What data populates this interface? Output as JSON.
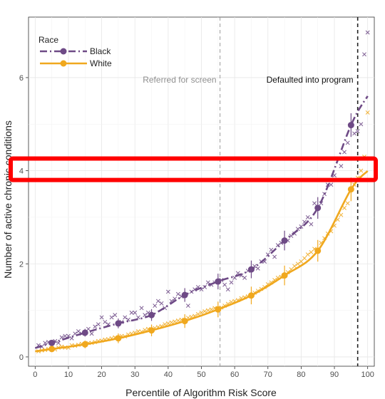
{
  "chart_data": {
    "type": "scatter",
    "xlabel": "Percentile of Algorithm Risk Score",
    "ylabel": "Number of active chronic conditions",
    "xlim": [
      -2,
      102
    ],
    "ylim": [
      -0.2,
      7.3
    ],
    "x_ticks": [
      0,
      10,
      20,
      30,
      40,
      50,
      60,
      70,
      80,
      90,
      100
    ],
    "x_tick_labels": [
      "0",
      "10",
      "20",
      "30",
      "40",
      "50",
      "60",
      "70",
      "80",
      "90",
      "100"
    ],
    "y_ticks": [
      0,
      2,
      4,
      6
    ],
    "y_tick_labels": [
      "0",
      "2",
      "4",
      "6"
    ],
    "grid": true,
    "legend_title": "Race",
    "legend_position": "top-left",
    "series": [
      {
        "name": "Black",
        "color": "#6e4a86",
        "line_style": "dashdot",
        "bin_means": {
          "x": [
            5,
            15,
            25,
            35,
            45,
            55,
            65,
            75,
            85,
            95
          ],
          "y": [
            0.3,
            0.52,
            0.72,
            0.9,
            1.33,
            1.62,
            1.88,
            2.5,
            3.2,
            4.98
          ]
        },
        "percentile_points": {
          "x": [
            1,
            2,
            3,
            4,
            6,
            7,
            8,
            9,
            10,
            11,
            12,
            13,
            14,
            16,
            17,
            18,
            19,
            20,
            21,
            22,
            23,
            24,
            26,
            27,
            28,
            29,
            30,
            31,
            32,
            33,
            34,
            36,
            37,
            38,
            39,
            40,
            41,
            42,
            43,
            44,
            46,
            47,
            48,
            49,
            50,
            51,
            52,
            53,
            54,
            56,
            57,
            58,
            59,
            60,
            61,
            62,
            63,
            64,
            66,
            67,
            68,
            69,
            70,
            71,
            72,
            73,
            74,
            76,
            77,
            78,
            79,
            80,
            81,
            82,
            83,
            84,
            86,
            87,
            88,
            89,
            90,
            91,
            92,
            93,
            94,
            96,
            97,
            98,
            99,
            100
          ],
          "y": [
            0.25,
            0.22,
            0.3,
            0.32,
            0.34,
            0.3,
            0.42,
            0.45,
            0.45,
            0.4,
            0.5,
            0.55,
            0.5,
            0.6,
            0.5,
            0.65,
            0.7,
            0.85,
            0.75,
            0.7,
            0.85,
            0.9,
            0.75,
            0.85,
            0.8,
            0.95,
            0.95,
            0.85,
            1.05,
            0.9,
            0.95,
            1.1,
            1.2,
            1.15,
            1.05,
            1.4,
            1.2,
            1.25,
            1.35,
            1.3,
            1.1,
            1.4,
            1.45,
            1.5,
            1.45,
            1.5,
            1.6,
            1.55,
            1.6,
            1.65,
            1.55,
            1.45,
            1.6,
            1.7,
            1.8,
            1.75,
            1.7,
            1.85,
            1.95,
            1.9,
            2.05,
            2.05,
            2.2,
            2.3,
            2.15,
            2.4,
            2.45,
            2.5,
            2.6,
            2.65,
            2.75,
            2.8,
            2.9,
            3.0,
            2.85,
            3.3,
            3.3,
            3.5,
            3.7,
            3.7,
            3.9,
            3.8,
            4.1,
            4.4,
            4.6,
            4.8,
            4.85,
            5.0,
            6.5,
            6.97
          ]
        }
      },
      {
        "name": "White",
        "color": "#f0a81e",
        "line_style": "solid",
        "bin_means": {
          "x": [
            5,
            15,
            25,
            35,
            45,
            55,
            65,
            75,
            85,
            95
          ],
          "y": [
            0.17,
            0.27,
            0.4,
            0.57,
            0.77,
            1.02,
            1.32,
            1.75,
            2.28,
            3.6
          ]
        },
        "percentile_points": {
          "x": [
            1,
            2,
            3,
            4,
            6,
            7,
            8,
            9,
            10,
            11,
            12,
            13,
            14,
            16,
            17,
            18,
            19,
            20,
            21,
            22,
            23,
            24,
            26,
            27,
            28,
            29,
            30,
            31,
            32,
            33,
            34,
            36,
            37,
            38,
            39,
            40,
            41,
            42,
            43,
            44,
            46,
            47,
            48,
            49,
            50,
            51,
            52,
            53,
            54,
            56,
            57,
            58,
            59,
            60,
            61,
            62,
            63,
            64,
            66,
            67,
            68,
            69,
            70,
            71,
            72,
            73,
            74,
            76,
            77,
            78,
            79,
            80,
            81,
            82,
            83,
            84,
            86,
            87,
            88,
            89,
            90,
            91,
            92,
            93,
            94,
            96,
            97,
            98,
            99,
            100
          ],
          "y": [
            0.12,
            0.14,
            0.15,
            0.17,
            0.16,
            0.2,
            0.22,
            0.2,
            0.2,
            0.25,
            0.24,
            0.26,
            0.28,
            0.3,
            0.3,
            0.32,
            0.34,
            0.35,
            0.37,
            0.38,
            0.4,
            0.42,
            0.45,
            0.44,
            0.48,
            0.5,
            0.52,
            0.55,
            0.54,
            0.58,
            0.6,
            0.62,
            0.64,
            0.66,
            0.7,
            0.72,
            0.74,
            0.76,
            0.78,
            0.8,
            0.84,
            0.86,
            0.88,
            0.92,
            0.95,
            0.98,
            1.0,
            1.02,
            1.05,
            1.06,
            1.1,
            1.14,
            1.18,
            1.2,
            1.22,
            1.26,
            1.28,
            1.3,
            1.38,
            1.42,
            1.46,
            1.5,
            1.56,
            1.6,
            1.65,
            1.7,
            1.72,
            1.82,
            1.88,
            1.95,
            2.0,
            2.05,
            2.12,
            2.2,
            2.25,
            2.32,
            2.45,
            2.55,
            2.65,
            2.7,
            2.82,
            2.95,
            3.05,
            3.2,
            3.3,
            3.7,
            3.85,
            4.0,
            4.3,
            5.25
          ]
        }
      }
    ],
    "annotations": [
      {
        "text": "Referred for screen",
        "x_line": 55.6,
        "color": "#9a9a9a",
        "line_style": "dashed"
      },
      {
        "text": "Defaulted into program",
        "x_line": 97,
        "color": "#222222",
        "line_style": "dashed"
      }
    ],
    "highlight_box": {
      "y_range": [
        3.8,
        4.2
      ],
      "color": "#ff0000"
    }
  }
}
